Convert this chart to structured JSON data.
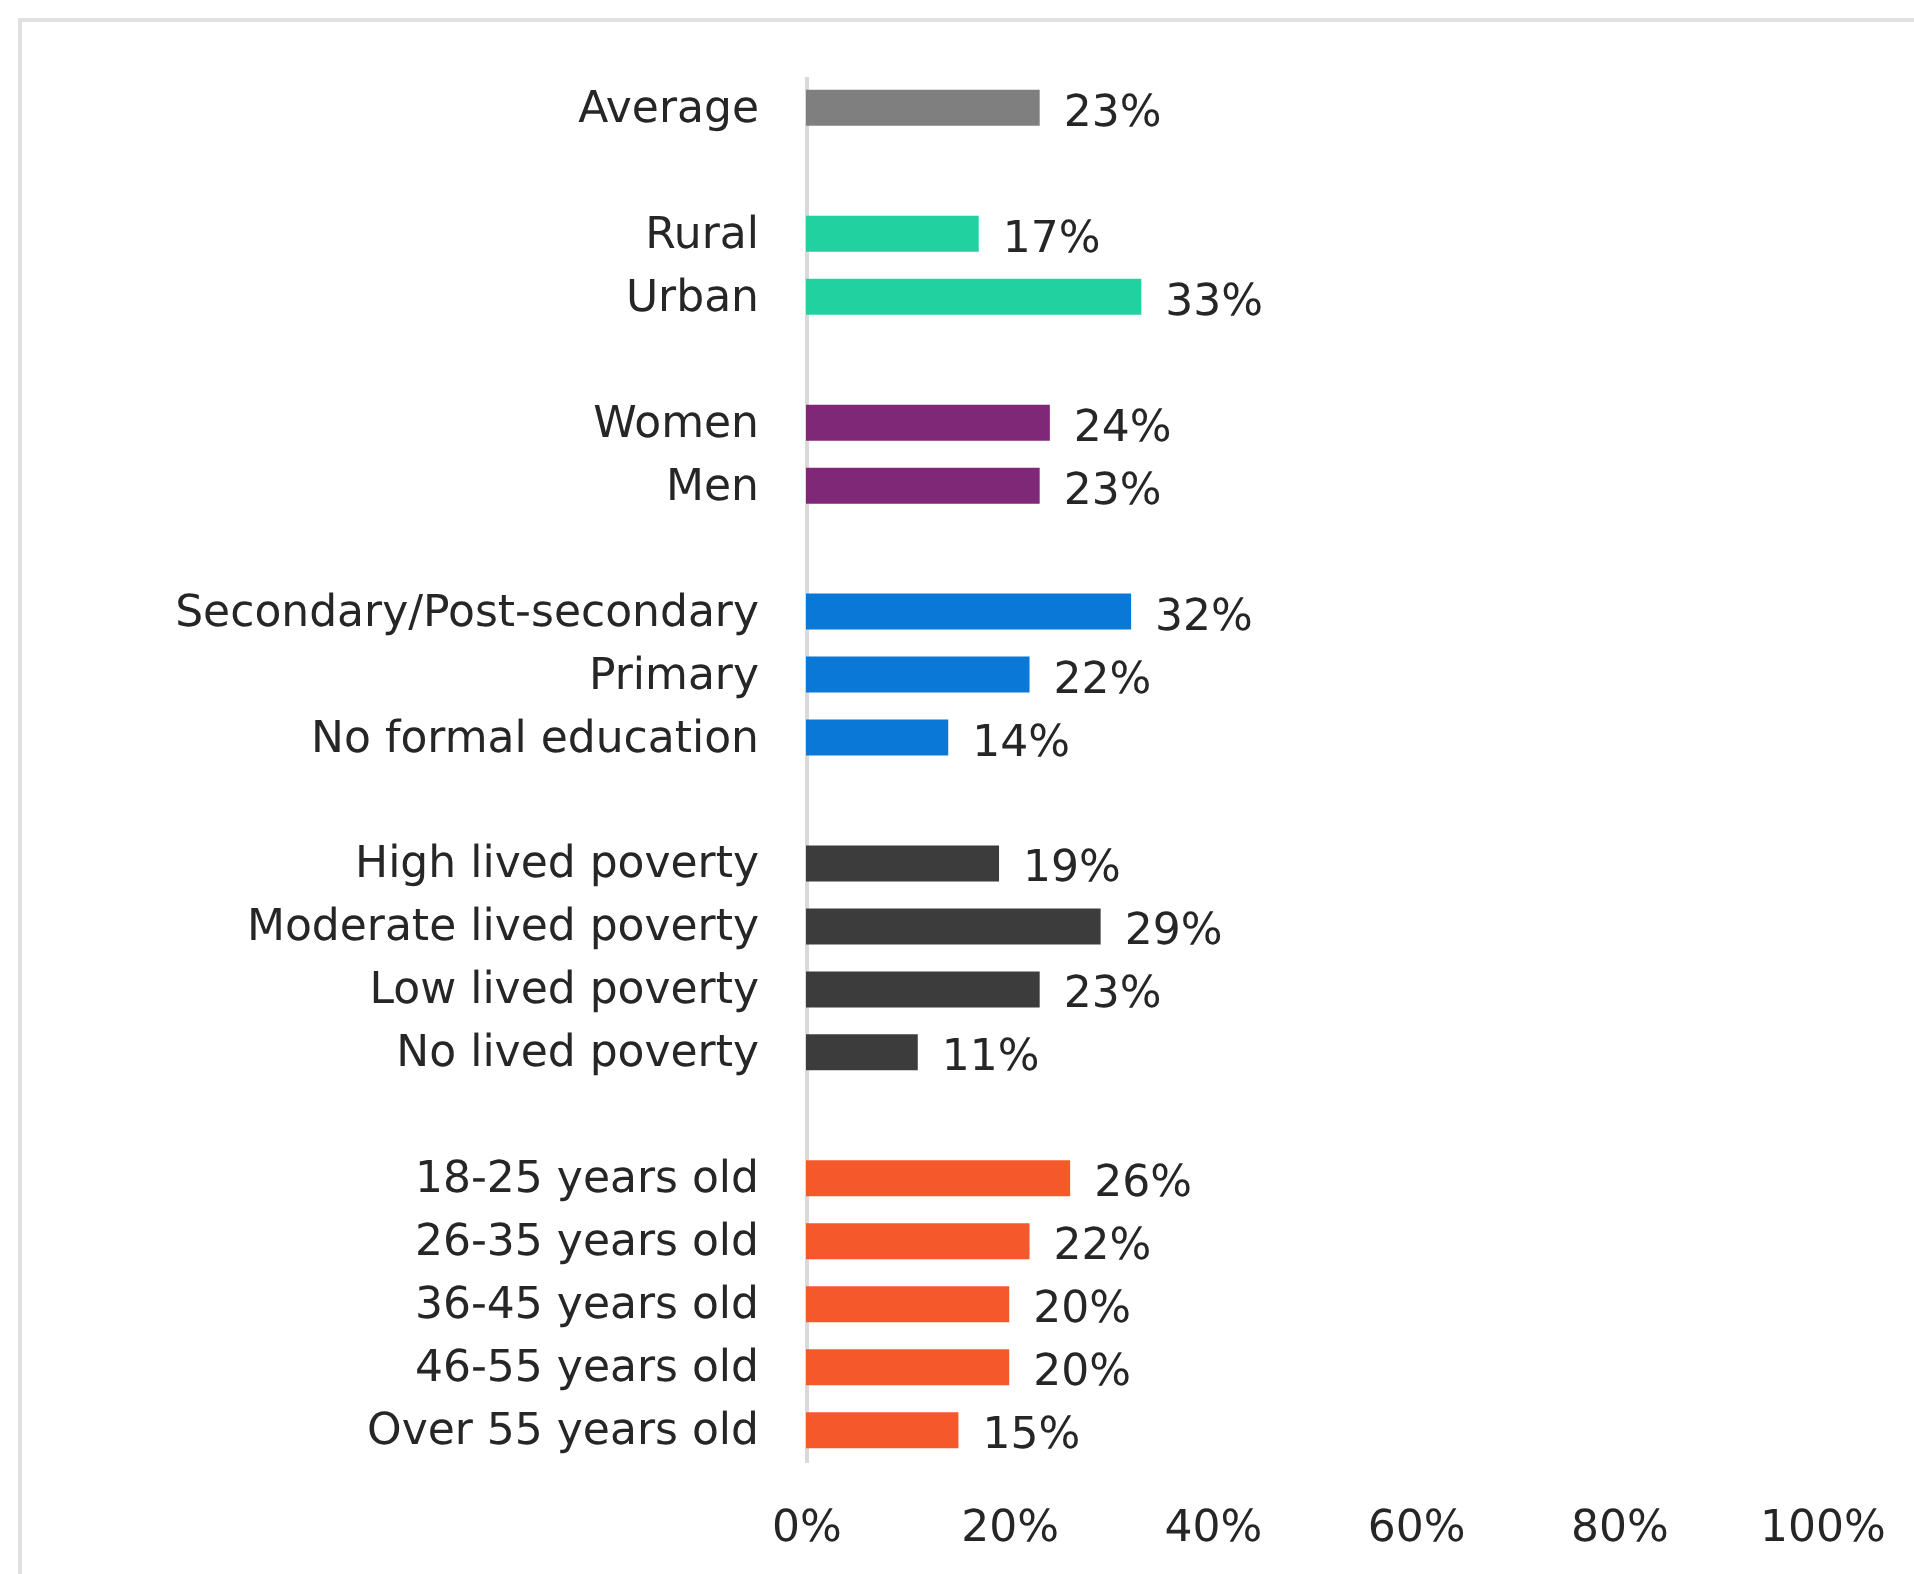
{
  "chart_data": {
    "type": "bar",
    "orientation": "horizontal",
    "categories": [
      "Average",
      null,
      "Rural",
      "Urban",
      null,
      "Women",
      "Men",
      null,
      "Secondary/Post-secondary",
      "Primary",
      "No formal education",
      null,
      "High lived poverty",
      "Moderate lived poverty",
      "Low lived poverty",
      "No lived poverty",
      null,
      "18-25 years old",
      "26-35  years old",
      "36-45  years old",
      "46-55  years old",
      "Over 55 years old"
    ],
    "values": [
      23,
      null,
      17,
      33,
      null,
      24,
      23,
      null,
      32,
      22,
      14,
      null,
      19,
      29,
      23,
      11,
      null,
      26,
      22,
      20,
      20,
      15
    ],
    "colors": [
      "#7f7f7f",
      null,
      "#21d1a0",
      "#21d1a0",
      null,
      "#7f2878",
      "#7f2878",
      null,
      "#0a78d7",
      "#0a78d7",
      "#0a78d7",
      null,
      "#3c3c3c",
      "#3c3c3c",
      "#3c3c3c",
      "#3c3c3c",
      null,
      "#f4582b",
      "#f4582b",
      "#f4582b",
      "#f4582b",
      "#f4582b"
    ],
    "value_labels": [
      "23%",
      null,
      "17%",
      "33%",
      null,
      "24%",
      "23%",
      null,
      "32%",
      "22%",
      "14%",
      null,
      "19%",
      "29%",
      "23%",
      "11%",
      null,
      "26%",
      "22%",
      "20%",
      "20%",
      "15%"
    ],
    "xlim": [
      0,
      100
    ],
    "xticks": [
      {
        "value": 0,
        "label": "0%"
      },
      {
        "value": 20,
        "label": "20%"
      },
      {
        "value": 40,
        "label": "40%"
      },
      {
        "value": 60,
        "label": "60%"
      },
      {
        "value": 80,
        "label": "80%"
      },
      {
        "value": 100,
        "label": "100%"
      }
    ]
  }
}
